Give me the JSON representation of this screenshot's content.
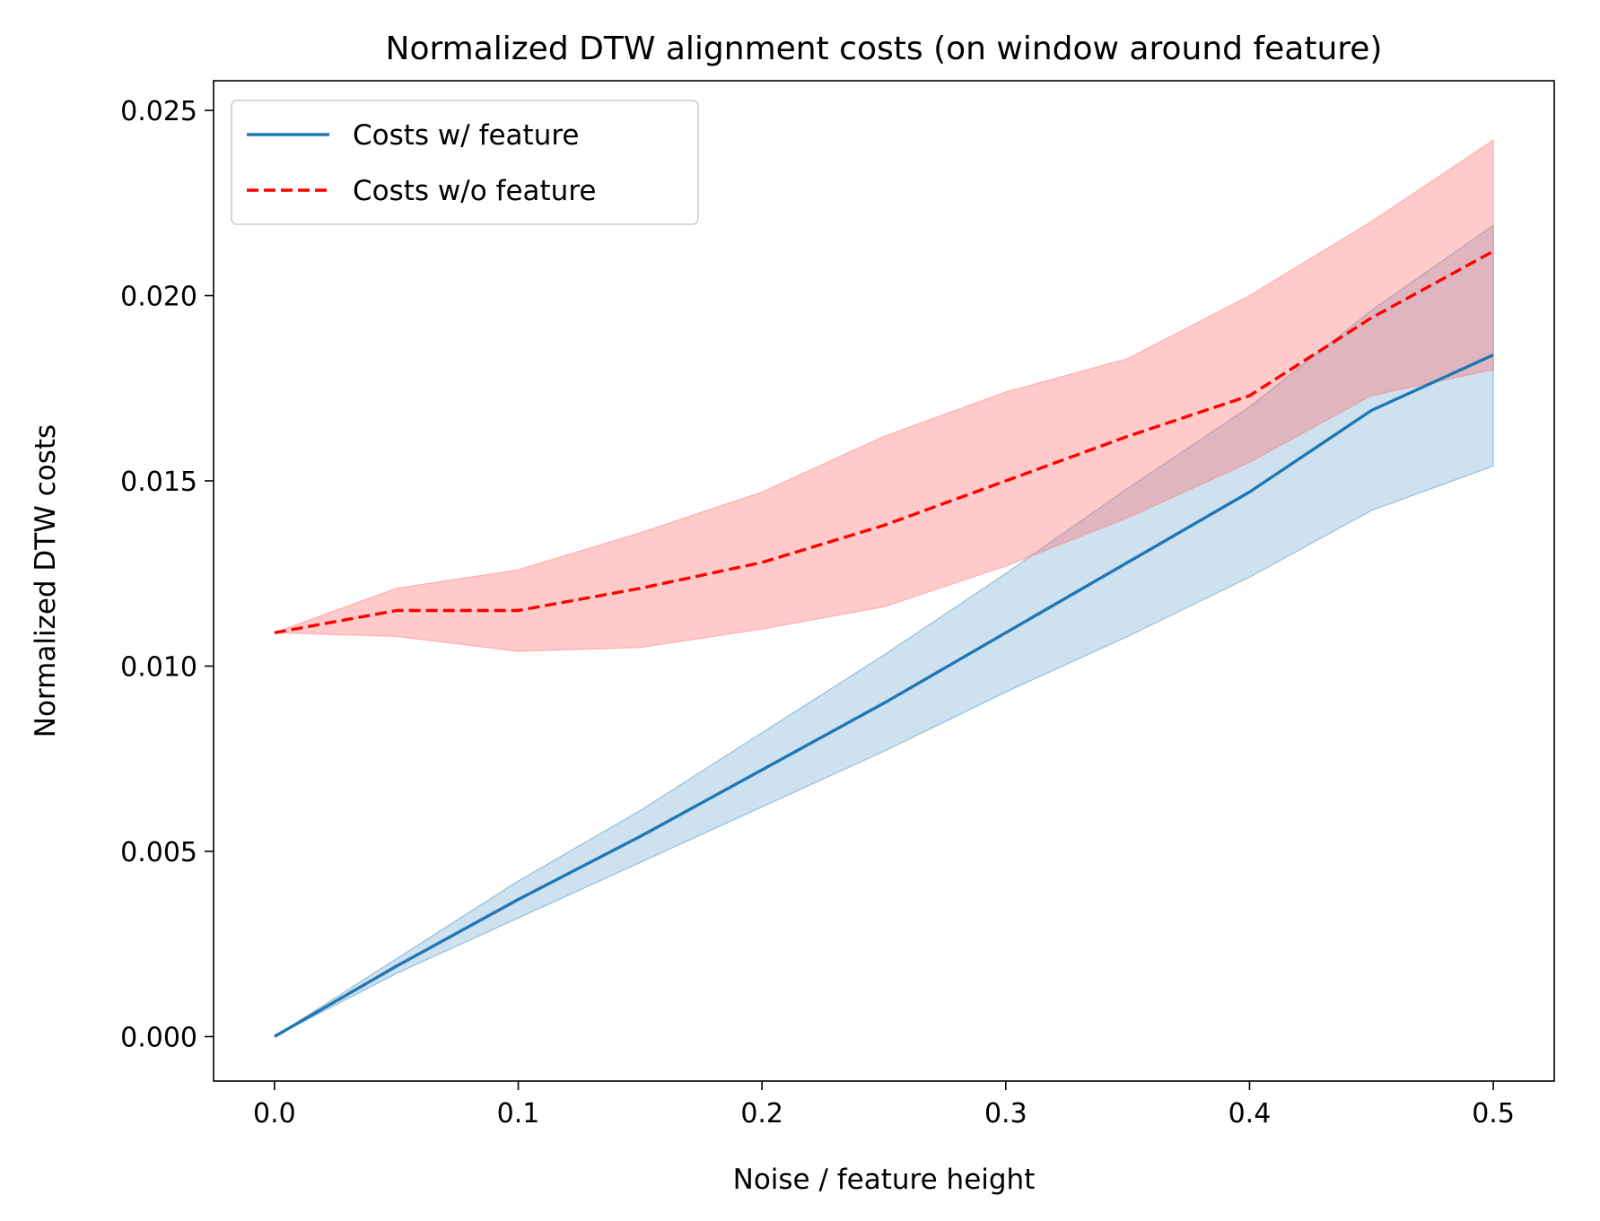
{
  "chart_data": {
    "type": "line",
    "title": "Normalized DTW alignment costs (on window around feature)",
    "xlabel": "Noise / feature height",
    "ylabel": "Normalized DTW costs",
    "xlim": [
      -0.025,
      0.525
    ],
    "ylim": [
      -0.0012,
      0.0258
    ],
    "xticks": [
      0.0,
      0.1,
      0.2,
      0.3,
      0.4,
      0.5
    ],
    "xtick_labels": [
      "0.0",
      "0.1",
      "0.2",
      "0.3",
      "0.4",
      "0.5"
    ],
    "yticks": [
      0.0,
      0.005,
      0.01,
      0.015,
      0.02,
      0.025
    ],
    "ytick_labels": [
      "0.000",
      "0.005",
      "0.010",
      "0.015",
      "0.020",
      "0.025"
    ],
    "grid": false,
    "legend_position": "top-left",
    "series": [
      {
        "name": "Costs w/ feature",
        "style": "solid",
        "color": "#1f77b4",
        "band_color": "#1f77b4",
        "x": [
          0.0,
          0.05,
          0.1,
          0.15,
          0.2,
          0.25,
          0.3,
          0.35,
          0.4,
          0.45,
          0.5
        ],
        "mean": [
          0.0,
          0.0019,
          0.0037,
          0.0054,
          0.0072,
          0.009,
          0.0109,
          0.0128,
          0.0147,
          0.0169,
          0.0184
        ],
        "lower": [
          0.0,
          0.0017,
          0.0032,
          0.0047,
          0.0062,
          0.0077,
          0.0093,
          0.0108,
          0.0124,
          0.0142,
          0.0154
        ],
        "upper": [
          0.0,
          0.0021,
          0.0042,
          0.0061,
          0.0082,
          0.0103,
          0.0125,
          0.0148,
          0.017,
          0.0196,
          0.0219
        ]
      },
      {
        "name": "Costs w/o feature",
        "style": "dashed",
        "color": "#ff0000",
        "band_color": "#ff6666",
        "x": [
          0.0,
          0.05,
          0.1,
          0.15,
          0.2,
          0.25,
          0.3,
          0.35,
          0.4,
          0.45,
          0.5
        ],
        "mean": [
          0.0109,
          0.0115,
          0.0115,
          0.0121,
          0.0128,
          0.0138,
          0.015,
          0.0162,
          0.0173,
          0.0194,
          0.0212
        ],
        "lower": [
          0.0109,
          0.0108,
          0.0104,
          0.0105,
          0.011,
          0.0116,
          0.0127,
          0.014,
          0.0155,
          0.0173,
          0.018
        ],
        "upper": [
          0.0109,
          0.0121,
          0.0126,
          0.0136,
          0.0147,
          0.0162,
          0.0174,
          0.0183,
          0.02,
          0.022,
          0.0242
        ]
      }
    ]
  }
}
